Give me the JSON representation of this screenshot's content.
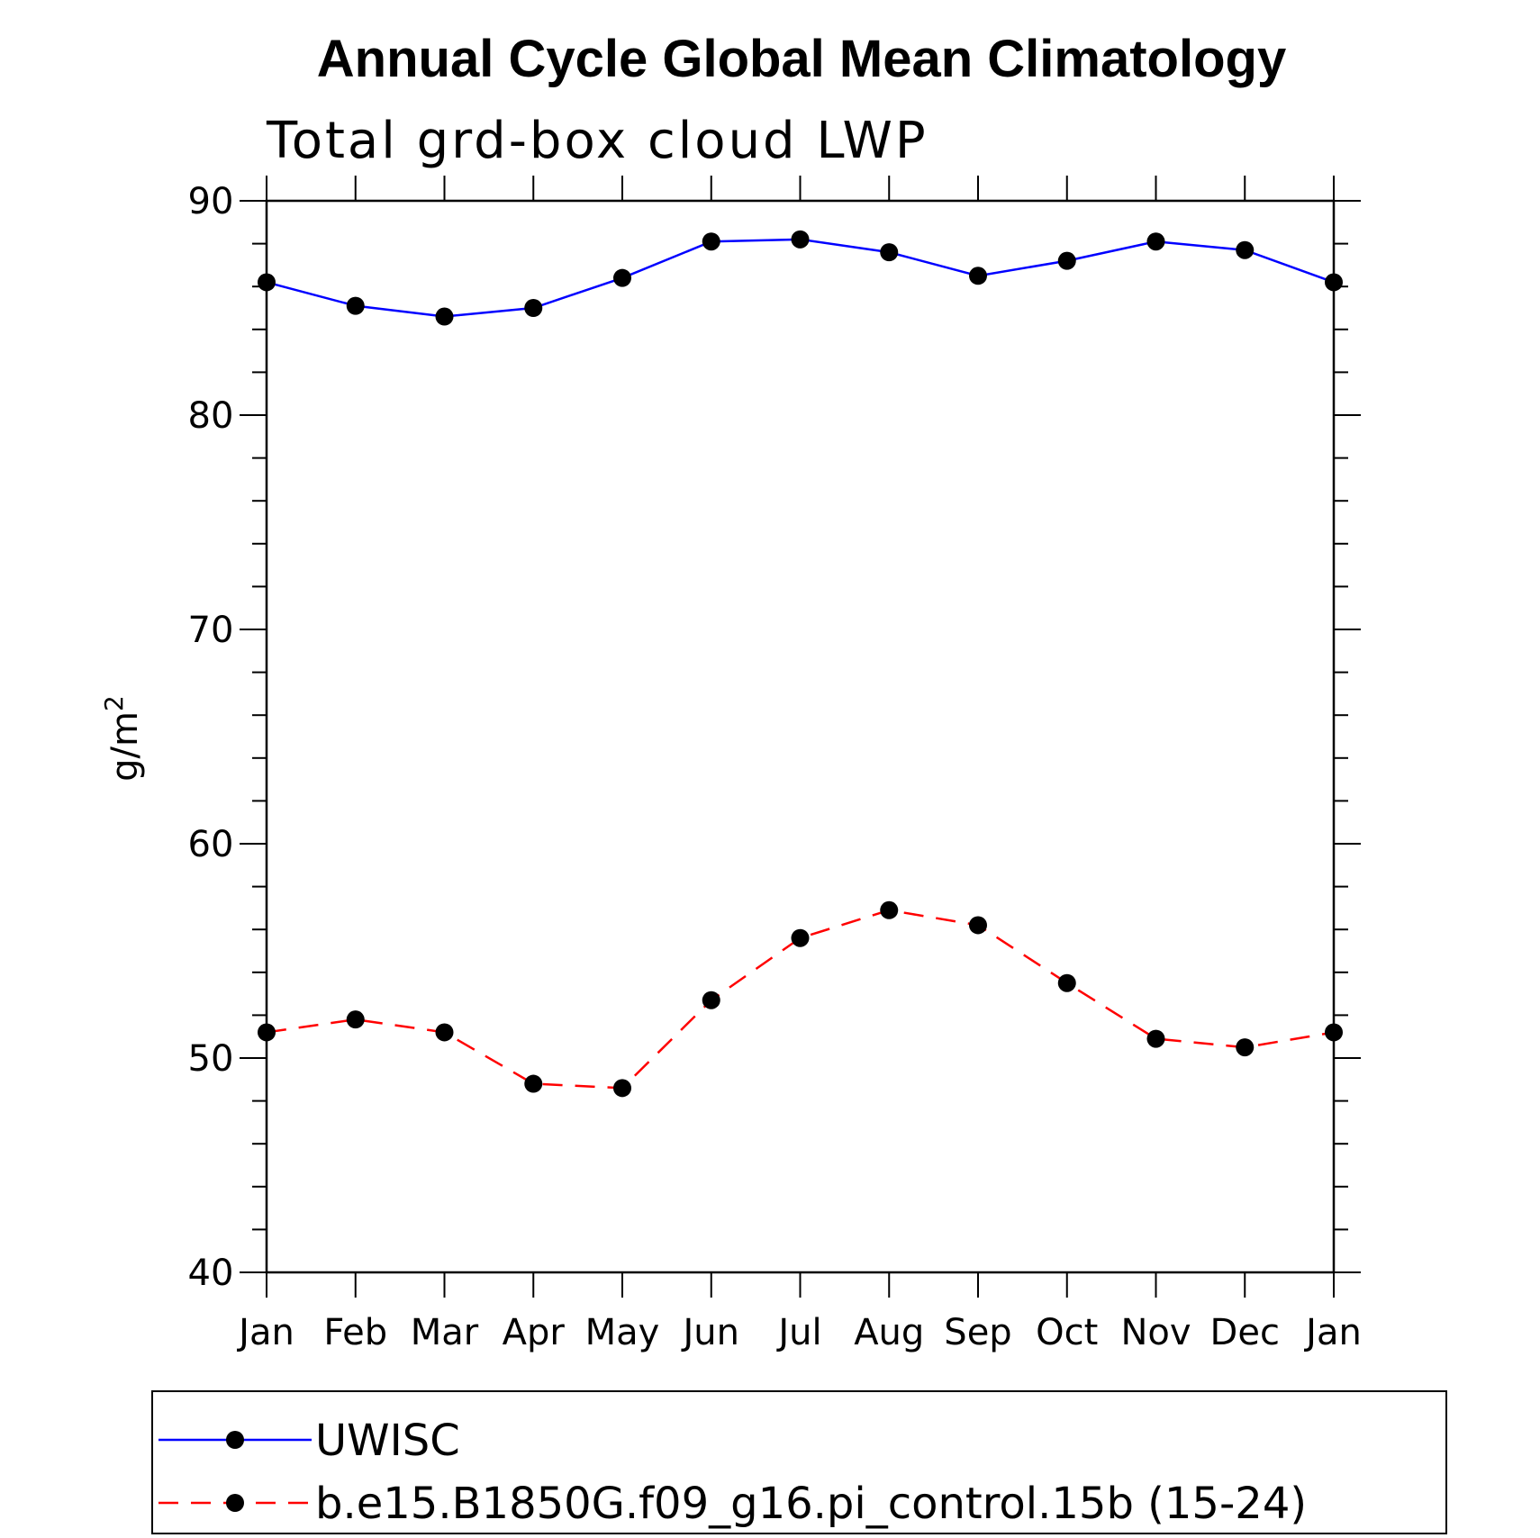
{
  "chart_data": {
    "type": "line",
    "title": "Annual Cycle Global Mean Climatology",
    "subtitle": "Total grd-box cloud LWP",
    "xlabel": "",
    "ylabel": "g/m",
    "ylabel_superscript": "2",
    "categories": [
      "Jan",
      "Feb",
      "Mar",
      "Apr",
      "May",
      "Jun",
      "Jul",
      "Aug",
      "Sep",
      "Oct",
      "Nov",
      "Dec",
      "Jan"
    ],
    "yticks": [
      "40",
      "50",
      "60",
      "70",
      "80",
      "90"
    ],
    "ylim": [
      40,
      90
    ],
    "grid": false,
    "legend_position": "bottom",
    "series": [
      {
        "name": "UWISC",
        "color": "#0000ff",
        "line_style": "solid",
        "marker": "filled-circle",
        "values": [
          86.2,
          85.1,
          84.6,
          85.0,
          86.4,
          88.1,
          88.2,
          87.6,
          86.5,
          87.2,
          88.1,
          87.7,
          86.2
        ]
      },
      {
        "name": "b.e15.B1850G.f09_g16.pi_control.15b (15-24)",
        "color": "#ff0000",
        "line_style": "dashed",
        "marker": "filled-circle",
        "values": [
          51.2,
          51.8,
          51.2,
          48.8,
          48.6,
          52.7,
          55.6,
          56.9,
          56.2,
          53.5,
          50.9,
          50.5,
          51.2
        ]
      }
    ]
  }
}
